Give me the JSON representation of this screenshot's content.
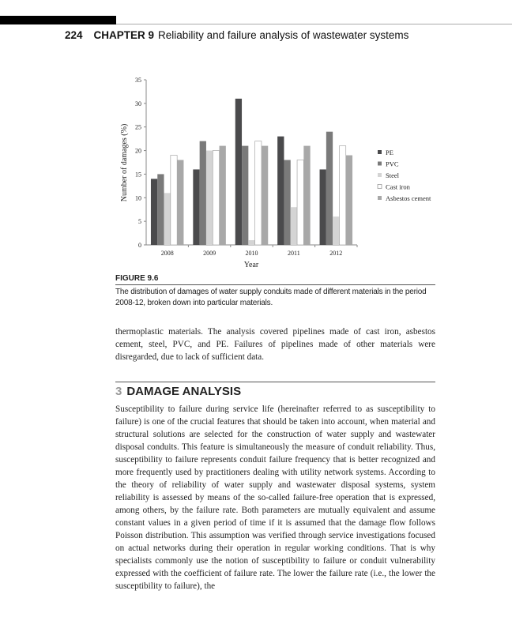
{
  "header": {
    "page_number": "224",
    "chapter": "CHAPTER 9",
    "title": "Reliability and failure analysis of wastewater systems"
  },
  "chart_data": {
    "type": "bar",
    "title": "",
    "xlabel": "Year",
    "ylabel": "Number of damages (%)",
    "ylim": [
      0,
      35
    ],
    "yticks": [
      0,
      5,
      10,
      15,
      20,
      25,
      30,
      35
    ],
    "categories": [
      "2008",
      "2009",
      "2010",
      "2011",
      "2012"
    ],
    "legend_position": "right",
    "grid": false,
    "series": [
      {
        "name": "PE",
        "color": "#4a4a4c",
        "values": [
          14,
          16,
          31,
          23,
          16
        ]
      },
      {
        "name": "PVC",
        "color": "#7a7a7a",
        "values": [
          15,
          22,
          21,
          18,
          24
        ]
      },
      {
        "name": "Steel",
        "color": "#d4d4d4",
        "values": [
          11,
          20,
          1,
          8,
          6
        ]
      },
      {
        "name": "Cast iron",
        "color": "#ffffff",
        "values": [
          19,
          20,
          22,
          18,
          21
        ]
      },
      {
        "name": "Asbestos cement",
        "color": "#a8a8a8",
        "values": [
          18,
          21,
          21,
          21,
          19
        ]
      }
    ]
  },
  "figure": {
    "label": "FIGURE 9.6",
    "caption": "The distribution of damages of water supply conduits made of different materials in the period 2008-12, broken down into particular materials."
  },
  "paragraph1": "thermoplastic materials. The analysis covered pipelines made of cast iron, asbestos cement, steel, PVC, and PE. Failures of pipelines made of other materials were disregarded, due to lack of sufficient data.",
  "section": {
    "number": "3",
    "title": "DAMAGE ANALYSIS"
  },
  "paragraph2": "Susceptibility to failure during service life (hereinafter referred to as susceptibility to failure) is one of the crucial features that should be taken into account, when material and structural solutions are selected for the construction of water supply and wastewater disposal conduits. This feature is simultaneously the measure of conduit reliability. Thus, susceptibility to failure represents conduit failure frequency that is better recognized and more frequently used by practitioners dealing with utility network systems. According to the theory of reliability of water supply and wastewater disposal systems, system reliability is assessed by means of the so-called failure-free operation that is expressed, among others, by the failure rate. Both parameters are mutually equivalent and assume constant values in a given period of time if it is assumed that the damage flow follows Poisson distribution. This assumption was verified through service investigations focused on actual networks during their operation in regular working conditions. That is why specialists commonly use the notion of susceptibility to failure or conduit vulnerability expressed with the coefficient of failure rate. The lower the failure rate (i.e., the lower the susceptibility to failure), the"
}
